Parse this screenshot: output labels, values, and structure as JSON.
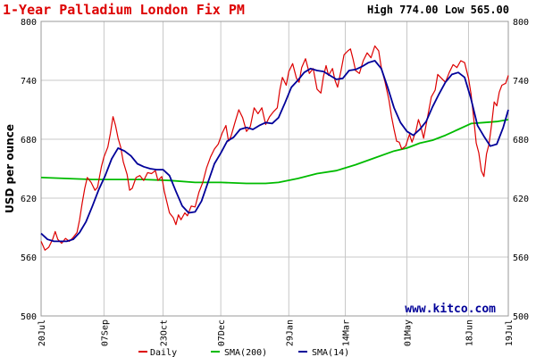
{
  "chart_data": {
    "type": "line",
    "title": "1-Year Palladium London Fix PM",
    "stats": "High 774.00 Low 565.00",
    "ylabel": "USD per ounce",
    "watermark": "www.kitco.com",
    "ylim": [
      500,
      800
    ],
    "yticks": [
      500,
      560,
      620,
      680,
      740,
      800
    ],
    "ytick_labels": [
      "500",
      "560",
      "620",
      "680",
      "740",
      "800"
    ],
    "xlim": [
      0,
      364
    ],
    "xticks": [
      {
        "day": 0,
        "label": "20Jul"
      },
      {
        "day": 49,
        "label": "07Sep"
      },
      {
        "day": 95,
        "label": "23Oct"
      },
      {
        "day": 140,
        "label": "07Dec"
      },
      {
        "day": 193,
        "label": "29Jan"
      },
      {
        "day": 237,
        "label": "14Mar"
      },
      {
        "day": 285,
        "label": "01May"
      },
      {
        "day": 333,
        "label": "18Jun"
      },
      {
        "day": 364,
        "label": "19Jul"
      }
    ],
    "colors": {
      "daily": "#dd0000",
      "sma200": "#00bb00",
      "sma14": "#000099",
      "grid": "#c8c8c8",
      "title": "#dd0000"
    },
    "series": [
      {
        "name": "Daily",
        "color": "#dd0000",
        "points": [
          [
            0,
            576
          ],
          [
            3,
            567
          ],
          [
            6,
            570
          ],
          [
            9,
            578
          ],
          [
            11,
            586
          ],
          [
            13,
            578
          ],
          [
            16,
            574
          ],
          [
            19,
            579
          ],
          [
            22,
            576
          ],
          [
            25,
            580
          ],
          [
            28,
            585
          ],
          [
            30,
            598
          ],
          [
            32,
            615
          ],
          [
            34,
            630
          ],
          [
            36,
            641
          ],
          [
            39,
            636
          ],
          [
            42,
            628
          ],
          [
            44,
            631
          ],
          [
            47,
            652
          ],
          [
            49,
            662
          ],
          [
            52,
            672
          ],
          [
            54,
            686
          ],
          [
            56,
            703
          ],
          [
            58,
            694
          ],
          [
            60,
            681
          ],
          [
            62,
            672
          ],
          [
            64,
            657
          ],
          [
            67,
            644
          ],
          [
            69,
            628
          ],
          [
            71,
            630
          ],
          [
            74,
            641
          ],
          [
            77,
            643
          ],
          [
            80,
            638
          ],
          [
            83,
            646
          ],
          [
            86,
            645
          ],
          [
            89,
            648
          ],
          [
            91,
            638
          ],
          [
            94,
            642
          ],
          [
            96,
            627
          ],
          [
            98,
            616
          ],
          [
            100,
            605
          ],
          [
            103,
            600
          ],
          [
            105,
            593
          ],
          [
            107,
            603
          ],
          [
            109,
            598
          ],
          [
            112,
            605
          ],
          [
            114,
            602
          ],
          [
            117,
            612
          ],
          [
            120,
            611
          ],
          [
            123,
            626
          ],
          [
            126,
            636
          ],
          [
            129,
            651
          ],
          [
            132,
            662
          ],
          [
            135,
            670
          ],
          [
            138,
            675
          ],
          [
            141,
            686
          ],
          [
            144,
            694
          ],
          [
            146,
            678
          ],
          [
            148,
            683
          ],
          [
            151,
            697
          ],
          [
            154,
            710
          ],
          [
            157,
            702
          ],
          [
            160,
            688
          ],
          [
            163,
            693
          ],
          [
            166,
            712
          ],
          [
            169,
            706
          ],
          [
            172,
            712
          ],
          [
            175,
            695
          ],
          [
            178,
            703
          ],
          [
            181,
            708
          ],
          [
            184,
            712
          ],
          [
            186,
            730
          ],
          [
            188,
            743
          ],
          [
            191,
            735
          ],
          [
            193,
            749
          ],
          [
            196,
            757
          ],
          [
            199,
            742
          ],
          [
            201,
            738
          ],
          [
            203,
            753
          ],
          [
            206,
            762
          ],
          [
            209,
            747
          ],
          [
            212,
            752
          ],
          [
            215,
            731
          ],
          [
            218,
            727
          ],
          [
            220,
            744
          ],
          [
            222,
            755
          ],
          [
            224,
            745
          ],
          [
            227,
            752
          ],
          [
            229,
            740
          ],
          [
            231,
            733
          ],
          [
            234,
            752
          ],
          [
            236,
            766
          ],
          [
            239,
            770
          ],
          [
            241,
            772
          ],
          [
            243,
            762
          ],
          [
            245,
            750
          ],
          [
            248,
            747
          ],
          [
            251,
            760
          ],
          [
            254,
            768
          ],
          [
            257,
            763
          ],
          [
            260,
            775
          ],
          [
            263,
            770
          ],
          [
            265,
            753
          ],
          [
            268,
            738
          ],
          [
            271,
            720
          ],
          [
            273,
            703
          ],
          [
            275,
            690
          ],
          [
            277,
            678
          ],
          [
            279,
            677
          ],
          [
            281,
            670
          ],
          [
            284,
            673
          ],
          [
            287,
            685
          ],
          [
            289,
            677
          ],
          [
            292,
            688
          ],
          [
            294,
            700
          ],
          [
            296,
            692
          ],
          [
            298,
            681
          ],
          [
            301,
            702
          ],
          [
            304,
            723
          ],
          [
            307,
            730
          ],
          [
            309,
            746
          ],
          [
            312,
            742
          ],
          [
            315,
            738
          ],
          [
            318,
            748
          ],
          [
            321,
            756
          ],
          [
            324,
            753
          ],
          [
            327,
            760
          ],
          [
            330,
            758
          ],
          [
            333,
            742
          ],
          [
            335,
            726
          ],
          [
            337,
            702
          ],
          [
            339,
            676
          ],
          [
            341,
            666
          ],
          [
            343,
            648
          ],
          [
            345,
            642
          ],
          [
            347,
            665
          ],
          [
            349,
            675
          ],
          [
            351,
            695
          ],
          [
            353,
            718
          ],
          [
            355,
            714
          ],
          [
            357,
            728
          ],
          [
            359,
            735
          ],
          [
            362,
            737
          ],
          [
            364,
            745
          ]
        ]
      },
      {
        "name": "SMA(200)",
        "color": "#00bb00",
        "points": [
          [
            0,
            641
          ],
          [
            20,
            640
          ],
          [
            40,
            639
          ],
          [
            60,
            639
          ],
          [
            80,
            639
          ],
          [
            100,
            638
          ],
          [
            120,
            636
          ],
          [
            140,
            636
          ],
          [
            160,
            635
          ],
          [
            175,
            635
          ],
          [
            185,
            636
          ],
          [
            200,
            640
          ],
          [
            215,
            645
          ],
          [
            230,
            648
          ],
          [
            245,
            654
          ],
          [
            260,
            661
          ],
          [
            275,
            668
          ],
          [
            285,
            671
          ],
          [
            295,
            676
          ],
          [
            305,
            679
          ],
          [
            315,
            684
          ],
          [
            325,
            690
          ],
          [
            335,
            696
          ],
          [
            345,
            697
          ],
          [
            355,
            698
          ],
          [
            364,
            700
          ]
        ]
      },
      {
        "name": "SMA(14)",
        "color": "#000099",
        "points": [
          [
            0,
            584
          ],
          [
            5,
            578
          ],
          [
            10,
            576
          ],
          [
            15,
            576
          ],
          [
            20,
            576
          ],
          [
            25,
            578
          ],
          [
            30,
            585
          ],
          [
            35,
            596
          ],
          [
            40,
            612
          ],
          [
            45,
            629
          ],
          [
            50,
            643
          ],
          [
            55,
            660
          ],
          [
            60,
            671
          ],
          [
            65,
            668
          ],
          [
            70,
            663
          ],
          [
            75,
            655
          ],
          [
            80,
            652
          ],
          [
            85,
            650
          ],
          [
            90,
            649
          ],
          [
            95,
            649
          ],
          [
            100,
            643
          ],
          [
            105,
            627
          ],
          [
            110,
            612
          ],
          [
            115,
            605
          ],
          [
            120,
            606
          ],
          [
            125,
            617
          ],
          [
            130,
            636
          ],
          [
            135,
            655
          ],
          [
            140,
            666
          ],
          [
            145,
            678
          ],
          [
            150,
            682
          ],
          [
            155,
            690
          ],
          [
            160,
            692
          ],
          [
            165,
            690
          ],
          [
            170,
            694
          ],
          [
            175,
            697
          ],
          [
            180,
            696
          ],
          [
            185,
            702
          ],
          [
            190,
            717
          ],
          [
            195,
            733
          ],
          [
            200,
            740
          ],
          [
            205,
            748
          ],
          [
            210,
            752
          ],
          [
            215,
            750
          ],
          [
            220,
            749
          ],
          [
            225,
            745
          ],
          [
            230,
            741
          ],
          [
            235,
            742
          ],
          [
            240,
            750
          ],
          [
            245,
            751
          ],
          [
            250,
            754
          ],
          [
            255,
            758
          ],
          [
            260,
            760
          ],
          [
            265,
            752
          ],
          [
            270,
            733
          ],
          [
            275,
            712
          ],
          [
            280,
            697
          ],
          [
            285,
            688
          ],
          [
            290,
            684
          ],
          [
            295,
            690
          ],
          [
            300,
            698
          ],
          [
            305,
            713
          ],
          [
            310,
            726
          ],
          [
            315,
            738
          ],
          [
            320,
            746
          ],
          [
            325,
            748
          ],
          [
            330,
            743
          ],
          [
            335,
            721
          ],
          [
            340,
            694
          ],
          [
            345,
            683
          ],
          [
            350,
            673
          ],
          [
            355,
            675
          ],
          [
            360,
            692
          ],
          [
            364,
            710
          ]
        ]
      }
    ],
    "legend": {
      "placement": "bottom",
      "items": [
        "Daily",
        "SMA(200)",
        "SMA(14)"
      ]
    }
  }
}
